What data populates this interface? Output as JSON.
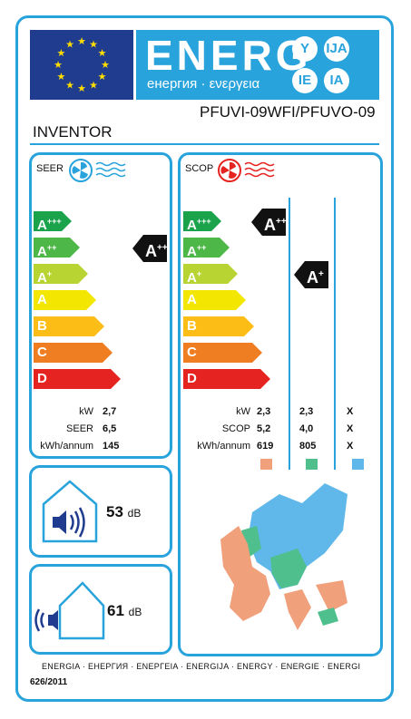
{
  "header": {
    "title_big": "ENERG",
    "title_sub": "енергия · ενεργεια",
    "lang_badges": [
      "Y",
      "IJA",
      "IE",
      "IA"
    ]
  },
  "supplier": "INVENTOR",
  "model": "PFUVI-09WFI/PFUVO-09",
  "seer": {
    "label": "SEER",
    "class": "A++",
    "kw": "2,7",
    "seer": "6,5",
    "kwh_annum": "145"
  },
  "scop": {
    "label": "SCOP",
    "columns": [
      {
        "class": "A+++",
        "kw": "2,3",
        "scop": "5,2",
        "kwh": "619",
        "color": "#f0a07a"
      },
      {
        "class": "A+",
        "kw": "2,3",
        "scop": "4,0",
        "kwh": "805",
        "color": "#4fc08d"
      },
      {
        "class": "",
        "kw": "X",
        "scop": "X",
        "kwh": "X",
        "color": "#5fb7ea"
      }
    ]
  },
  "row_labels": {
    "kw": "kW",
    "seer": "SEER",
    "scop": "SCOP",
    "kwh": "kWh/annum"
  },
  "scale": [
    {
      "base": "A",
      "sup": "+++",
      "color": "#1aa34a"
    },
    {
      "base": "A",
      "sup": "++",
      "color": "#4db848"
    },
    {
      "base": "A",
      "sup": "+",
      "color": "#b8d433"
    },
    {
      "base": "A",
      "sup": "",
      "color": "#f3e600"
    },
    {
      "base": "B",
      "sup": "",
      "color": "#fbbd16"
    },
    {
      "base": "C",
      "sup": "",
      "color": "#ef7d22"
    },
    {
      "base": "D",
      "sup": "",
      "color": "#e52421"
    }
  ],
  "noise_indoor": {
    "value": "53",
    "unit": "dB"
  },
  "noise_outdoor": {
    "value": "61",
    "unit": "dB"
  },
  "footer_languages": "ENERGIA · ЕНЕРГИЯ · ΕΝΕΡΓΕΙΑ · ENERGIJA · ENERGY · ENERGIE · ENERGI",
  "regulation": "626/2011"
}
